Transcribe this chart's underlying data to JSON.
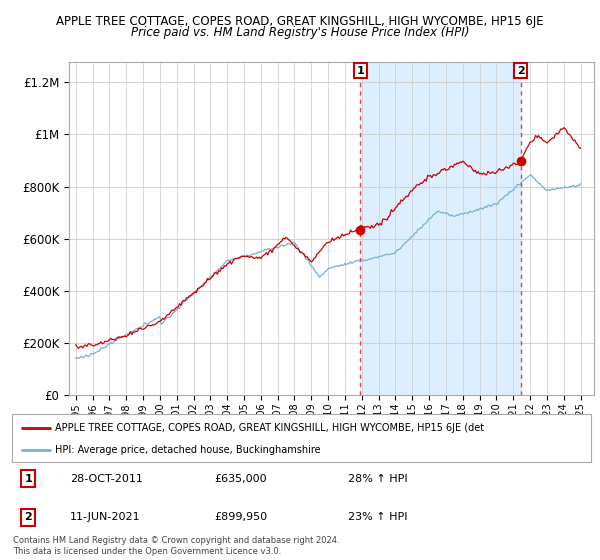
{
  "title_line1": "APPLE TREE COTTAGE, COPES ROAD, GREAT KINGSHILL, HIGH WYCOMBE, HP15 6JE",
  "title_line2": "Price paid vs. HM Land Registry's House Price Index (HPI)",
  "ylabel_ticks": [
    "£0",
    "£200K",
    "£400K",
    "£600K",
    "£800K",
    "£1M",
    "£1.2M"
  ],
  "ytick_values": [
    0,
    200000,
    400000,
    600000,
    800000,
    1000000,
    1200000
  ],
  "ylim": [
    0,
    1280000
  ],
  "sale1_year": 2011.917,
  "sale1_price": 635000,
  "sale2_year": 2021.44,
  "sale2_price": 899950,
  "red_line_color": "#cc0000",
  "blue_line_color": "#7ab0d4",
  "shade_color": "#ddeeff",
  "dotted_line_color": "#dd4444",
  "grid_color": "#cccccc",
  "legend_label_red": "APPLE TREE COTTAGE, COPES ROAD, GREAT KINGSHILL, HIGH WYCOMBE, HP15 6JE (det",
  "legend_label_blue": "HPI: Average price, detached house, Buckinghamshire",
  "footnote": "Contains HM Land Registry data © Crown copyright and database right 2024.\nThis data is licensed under the Open Government Licence v3.0.",
  "table_rows": [
    {
      "num": "1",
      "date": "28-OCT-2011",
      "price": "£635,000",
      "change": "28% ↑ HPI"
    },
    {
      "num": "2",
      "date": "11-JUN-2021",
      "price": "£899,950",
      "change": "23% ↑ HPI"
    }
  ]
}
